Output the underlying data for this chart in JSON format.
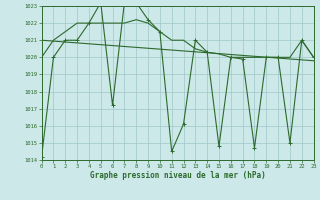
{
  "xlabel": "Graphe pression niveau de la mer (hPa)",
  "x_ticks": [
    0,
    1,
    2,
    3,
    4,
    5,
    6,
    7,
    8,
    9,
    10,
    11,
    12,
    13,
    14,
    15,
    16,
    17,
    18,
    19,
    20,
    21,
    22,
    23
  ],
  "ylim": [
    1014,
    1023
  ],
  "ytick_min": 1014,
  "ytick_max": 1023,
  "y_ticks": [
    1014,
    1015,
    1016,
    1017,
    1018,
    1019,
    1020,
    1021,
    1022,
    1023
  ],
  "line_color": "#2d6a2d",
  "bg_color": "#cce8e8",
  "grid_color": "#a0c8c8",
  "main_series": [
    [
      0,
      1014.2
    ],
    [
      1,
      1020.0
    ],
    [
      2,
      1021.0
    ],
    [
      3,
      1021.0
    ],
    [
      4,
      1022.0
    ],
    [
      5,
      1023.2
    ],
    [
      6,
      1017.2
    ],
    [
      7,
      1023.2
    ],
    [
      8,
      1023.2
    ],
    [
      9,
      1022.2
    ],
    [
      10,
      1021.5
    ],
    [
      11,
      1014.5
    ],
    [
      12,
      1016.1
    ],
    [
      13,
      1021.0
    ],
    [
      14,
      1020.3
    ],
    [
      15,
      1014.8
    ],
    [
      16,
      1020.0
    ],
    [
      17,
      1019.9
    ],
    [
      18,
      1014.7
    ],
    [
      19,
      1020.0
    ],
    [
      20,
      1020.0
    ],
    [
      21,
      1015.0
    ],
    [
      22,
      1021.0
    ],
    [
      23,
      1020.0
    ]
  ],
  "series2": [
    [
      0,
      1020.0
    ],
    [
      1,
      1021.0
    ],
    [
      2,
      1021.5
    ],
    [
      3,
      1022.0
    ],
    [
      4,
      1022.0
    ],
    [
      5,
      1022.0
    ],
    [
      6,
      1022.0
    ],
    [
      7,
      1022.0
    ],
    [
      8,
      1022.2
    ],
    [
      9,
      1022.0
    ],
    [
      10,
      1021.5
    ],
    [
      11,
      1021.0
    ],
    [
      12,
      1021.0
    ],
    [
      13,
      1020.5
    ],
    [
      14,
      1020.3
    ],
    [
      15,
      1020.2
    ],
    [
      16,
      1020.0
    ],
    [
      17,
      1020.0
    ],
    [
      18,
      1020.0
    ],
    [
      19,
      1020.0
    ],
    [
      20,
      1020.0
    ],
    [
      21,
      1020.0
    ],
    [
      22,
      1021.0
    ],
    [
      23,
      1020.0
    ]
  ],
  "trend_series": [
    [
      0,
      1021.0
    ],
    [
      23,
      1019.8
    ]
  ]
}
